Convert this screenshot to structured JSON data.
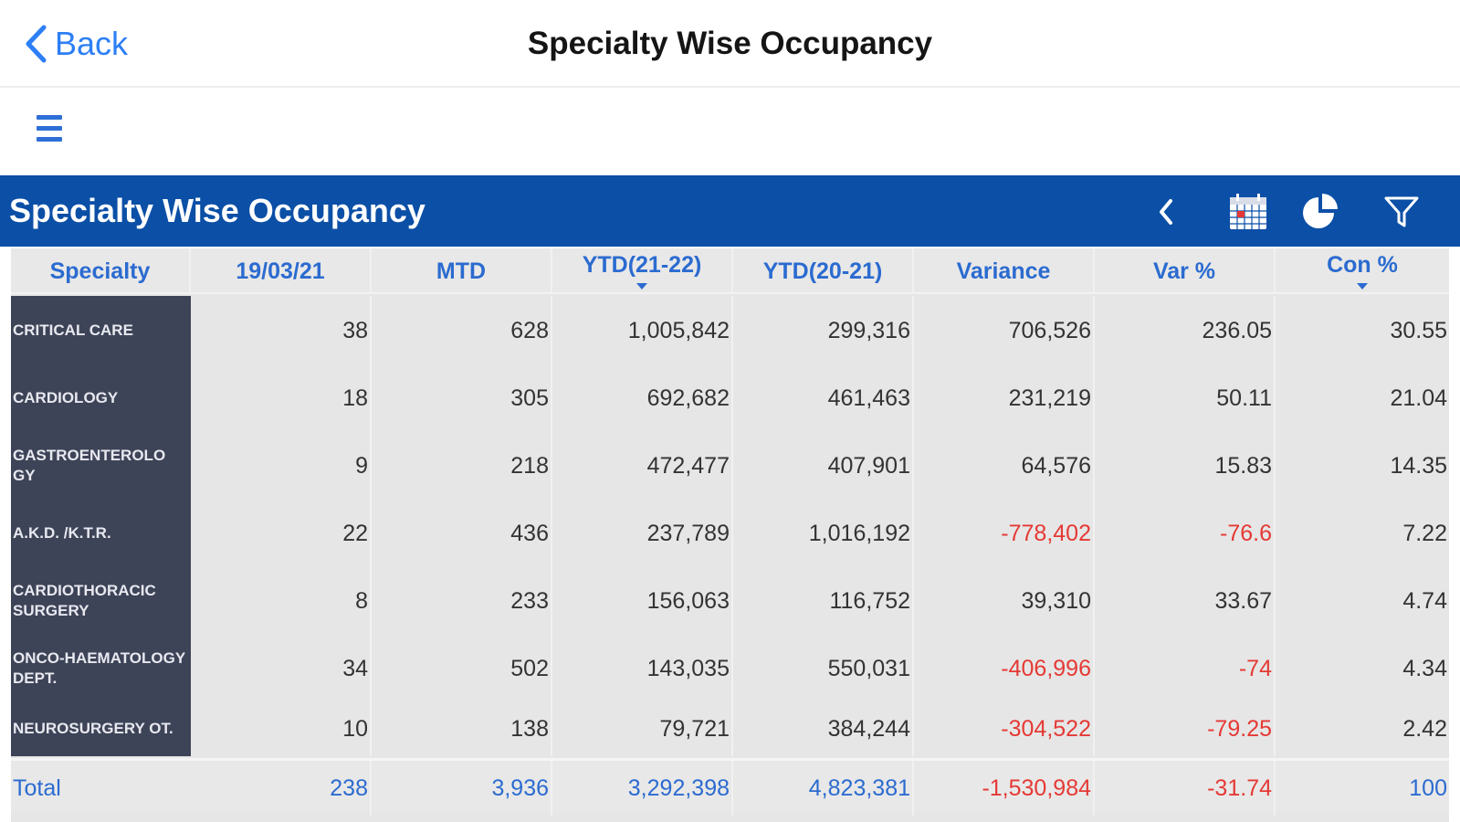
{
  "nav": {
    "back_label": "Back",
    "title": "Specialty Wise Occupancy"
  },
  "report": {
    "title": "Specialty Wise Occupancy"
  },
  "colors": {
    "accent": "#0b4fa6",
    "link": "#2d7ff5",
    "negative": "#e53935",
    "specialty_bg": "#3d4457"
  },
  "icons": [
    "chevron-left-icon",
    "calendar-icon",
    "pie-chart-icon",
    "filter-icon"
  ],
  "table": {
    "headers": [
      "Specialty",
      "19/03/21",
      "MTD",
      "YTD(21-22)",
      "YTD(20-21)",
      "Variance",
      "Var %",
      "Con %"
    ],
    "rows": [
      {
        "specialty": "CRITICAL CARE",
        "day": "38",
        "mtd": "628",
        "ytd_cur": "1,005,842",
        "ytd_prev": "299,316",
        "variance": "706,526",
        "var_pct": "236.05",
        "con_pct": "30.55"
      },
      {
        "specialty": "CARDIOLOGY",
        "day": "18",
        "mtd": "305",
        "ytd_cur": "692,682",
        "ytd_prev": "461,463",
        "variance": "231,219",
        "var_pct": "50.11",
        "con_pct": "21.04"
      },
      {
        "specialty": "GASTROENTEROLO GY",
        "day": "9",
        "mtd": "218",
        "ytd_cur": "472,477",
        "ytd_prev": "407,901",
        "variance": "64,576",
        "var_pct": "15.83",
        "con_pct": "14.35"
      },
      {
        "specialty": "A.K.D. /K.T.R.",
        "day": "22",
        "mtd": "436",
        "ytd_cur": "237,789",
        "ytd_prev": "1,016,192",
        "variance": "-778,402",
        "var_pct": "-76.6",
        "con_pct": "7.22"
      },
      {
        "specialty": "CARDIOTHORACIC SURGERY",
        "day": "8",
        "mtd": "233",
        "ytd_cur": "156,063",
        "ytd_prev": "116,752",
        "variance": "39,310",
        "var_pct": "33.67",
        "con_pct": "4.74"
      },
      {
        "specialty": "ONCO-HAEMATOLOGY DEPT.",
        "day": "34",
        "mtd": "502",
        "ytd_cur": "143,035",
        "ytd_prev": "550,031",
        "variance": "-406,996",
        "var_pct": "-74",
        "con_pct": "4.34"
      },
      {
        "specialty": "NEUROSURGERY OT.",
        "day": "10",
        "mtd": "138",
        "ytd_cur": "79,721",
        "ytd_prev": "384,244",
        "variance": "-304,522",
        "var_pct": "-79.25",
        "con_pct": "2.42"
      }
    ],
    "total": {
      "label": "Total",
      "day": "238",
      "mtd": "3,936",
      "ytd_cur": "3,292,398",
      "ytd_prev": "4,823,381",
      "variance": "-1,530,984",
      "var_pct": "-31.74",
      "con_pct": "100"
    }
  }
}
